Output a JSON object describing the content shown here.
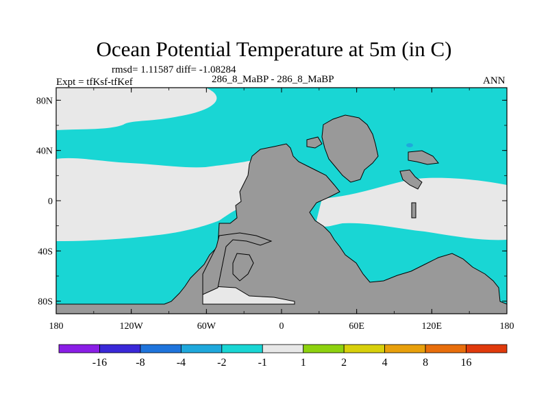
{
  "chart_data": {
    "type": "heatmap",
    "title": "Ocean Potential Temperature at 5m (in C)",
    "stats": "rmsd= 1.11587 diff= -1.08284",
    "experiment": "Expt = tfKsf-tfKef",
    "cases": "286_8_MaBP - 286_8_MaBP",
    "season": "ANN",
    "x_ticks": [
      "180",
      "120W",
      "60W",
      "0",
      "60E",
      "120E",
      "180"
    ],
    "x_tick_values": [
      -180,
      -120,
      -60,
      0,
      60,
      120,
      180
    ],
    "y_ticks": [
      "80N",
      "40N",
      "0",
      "40S",
      "80S"
    ],
    "y_tick_values": [
      80,
      40,
      0,
      -40,
      -80
    ],
    "xlim": [
      -180,
      180
    ],
    "ylim": [
      -90,
      90
    ],
    "colorbar": {
      "levels": [
        "-16",
        "-8",
        "-4",
        "-2",
        "-1",
        "1",
        "2",
        "4",
        "8",
        "16"
      ],
      "colors": [
        "#8a1ee6",
        "#3a28d8",
        "#1f74dc",
        "#1fa8dc",
        "#19d6d4",
        "#e8e8e8",
        "#8ed20f",
        "#d8d00c",
        "#e8a00c",
        "#e86e0c",
        "#e03a0c"
      ]
    },
    "land_color": "#999999",
    "regions": [
      {
        "name": "north-ocean-cyan",
        "class": "-2 to -1"
      },
      {
        "name": "north-pacific-gray",
        "class": "-1 to 1"
      },
      {
        "name": "tropical-band-gray",
        "class": "-1 to 1"
      },
      {
        "name": "southern-ocean-cyan",
        "class": "-2 to -1"
      },
      {
        "name": "small-spots-blue",
        "class": "-4 to -2"
      }
    ]
  }
}
